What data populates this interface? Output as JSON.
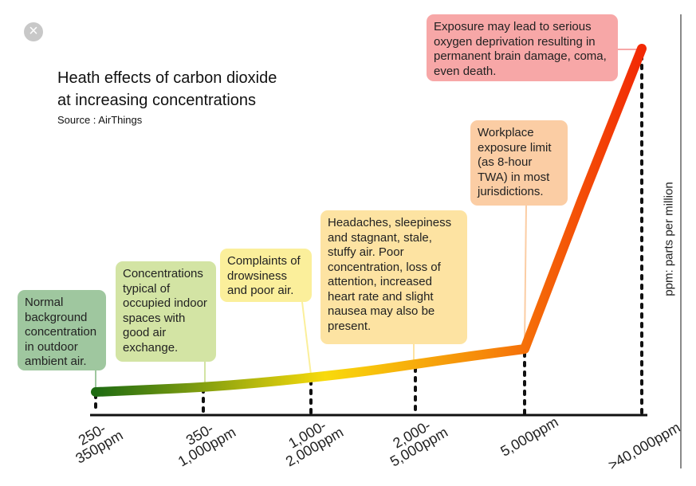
{
  "title_lines": [
    "Heath effects of carbon dioxide",
    "at increasing concentrations"
  ],
  "source": "Source : AirThings",
  "close_icon": "×",
  "unit_label": "ppm: parts per million",
  "chart_data": {
    "type": "line",
    "categories": [
      "250-\n350ppm",
      "350-\n1,000ppm",
      "1,000-\n2,000ppm",
      "2,000-\n5,000ppm",
      "5,000ppm",
      ">40,000ppm"
    ],
    "annotations": [
      {
        "category": "250-\n350ppm",
        "text": "Normal background concentration in outdoor ambient air.",
        "color": "#9fc79f"
      },
      {
        "category": "350-\n1,000ppm",
        "text": "Concentrations typical of occupied indoor spaces with good air exchange.",
        "color": "#d3e4a4"
      },
      {
        "category": "1,000-\n2,000ppm",
        "text": "Complaints of drowsiness and poor air.",
        "color": "#fbef9b"
      },
      {
        "category": "2,000-\n5,000ppm",
        "text": "Headaches, sleepiness and stagnant, stale, stuffy air. Poor concentration, loss of attention, increased heart rate and slight nausea may also be present.",
        "color": "#fde3a2"
      },
      {
        "category": "5,000ppm",
        "text": "Workplace exposure limit (as 8-hour TWA) in most jurisdictions.",
        "color": "#fbcda4"
      },
      {
        "category": ">40,000ppm",
        "text": "Exposure may lead to serious oxygen deprivation resulting in permanent brain damage, coma, even death.",
        "color": "#f7a7a7"
      }
    ],
    "gradient_colors": [
      "#1e6b12",
      "#f8da0c",
      "#f6860a",
      "#f22905"
    ],
    "grid": false,
    "xlabel": "",
    "ylabel": ""
  }
}
